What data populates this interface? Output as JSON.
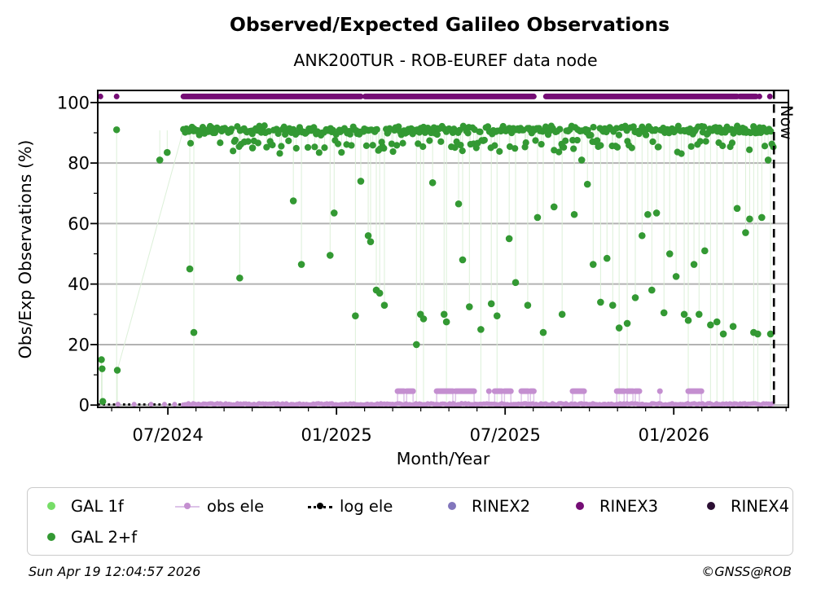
{
  "chart_data": {
    "type": "scatter",
    "title": "Observed/Expected Galileo Observations",
    "subtitle": "ANK200TUR - ROB-EUREF data node",
    "xlabel": "Month/Year",
    "ylabel": "Obs/Exp Observations (%)",
    "xlim": [
      2024.292,
      2026.34
    ],
    "ylim": [
      -0.75,
      104.0
    ],
    "grid": "horizontal-major",
    "legend_position": "below",
    "x_major_ticks": [
      {
        "x": 2024.5,
        "label": "07/2024"
      },
      {
        "x": 2025.0,
        "label": "01/2025"
      },
      {
        "x": 2025.5,
        "label": "07/2025"
      },
      {
        "x": 2026.0,
        "label": "01/2026"
      }
    ],
    "x_minor_step_years": 0.08333,
    "y_major_ticks": [
      0,
      20,
      40,
      60,
      80,
      100
    ],
    "y_minor_ticks": [
      10,
      30,
      50,
      70,
      90
    ],
    "gridline_ys": [
      0,
      20,
      40,
      60,
      80
    ],
    "reference_line_y": 100,
    "now": {
      "x": 2026.297,
      "label": "Now"
    },
    "series": [
      {
        "name": "GAL 1f",
        "color": "#76dd67",
        "marker": "dot",
        "points": []
      },
      {
        "name": "GAL 2+f",
        "color": "#339933",
        "marker": "dot",
        "sparse_points": [
          [
            2024.303,
            15
          ],
          [
            2024.305,
            12
          ],
          [
            2024.307,
            1.2
          ],
          [
            2024.348,
            91
          ],
          [
            2024.35,
            11.5
          ]
        ],
        "connector": [
          [
            2024.35,
            11.5
          ],
          [
            2024.546,
            91
          ]
        ],
        "dense_band": {
          "x_start": 2024.546,
          "x_end": 2026.296,
          "n": 418,
          "y_center": 90.8,
          "y_spread": 1.7,
          "low_band_center": 86.3,
          "low_band_spread": 1.3,
          "low_band_fraction": 0.18,
          "deep_center": 84.0,
          "deep_fraction": 0.03
        },
        "outliers": [
          [
            2024.476,
            81
          ],
          [
            2024.498,
            83.5
          ],
          [
            2024.565,
            45
          ],
          [
            2024.577,
            24
          ],
          [
            2024.713,
            42
          ],
          [
            2024.727,
            87
          ],
          [
            2024.751,
            85
          ],
          [
            2024.872,
            67.5
          ],
          [
            2024.896,
            46.5
          ],
          [
            2024.981,
            49.5
          ],
          [
            2024.993,
            63.5
          ],
          [
            2025.056,
            29.5
          ],
          [
            2025.072,
            74
          ],
          [
            2025.094,
            56
          ],
          [
            2025.101,
            54
          ],
          [
            2025.118,
            38
          ],
          [
            2025.128,
            37
          ],
          [
            2025.142,
            33
          ],
          [
            2025.237,
            20
          ],
          [
            2025.249,
            30
          ],
          [
            2025.258,
            28.5
          ],
          [
            2025.285,
            73.5
          ],
          [
            2025.319,
            30
          ],
          [
            2025.326,
            27.5
          ],
          [
            2025.362,
            66.5
          ],
          [
            2025.374,
            48
          ],
          [
            2025.394,
            32.5
          ],
          [
            2025.428,
            25
          ],
          [
            2025.459,
            33.5
          ],
          [
            2025.476,
            29.5
          ],
          [
            2025.512,
            55
          ],
          [
            2025.531,
            40.5
          ],
          [
            2025.567,
            33
          ],
          [
            2025.596,
            62
          ],
          [
            2025.613,
            24
          ],
          [
            2025.645,
            65.5
          ],
          [
            2025.669,
            30
          ],
          [
            2025.705,
            63
          ],
          [
            2025.727,
            81
          ],
          [
            2025.744,
            73
          ],
          [
            2025.761,
            46.5
          ],
          [
            2025.783,
            34
          ],
          [
            2025.802,
            48.5
          ],
          [
            2025.819,
            33
          ],
          [
            2025.838,
            25.5
          ],
          [
            2025.862,
            27
          ],
          [
            2025.886,
            35.5
          ],
          [
            2025.906,
            56
          ],
          [
            2025.923,
            63
          ],
          [
            2025.935,
            38
          ],
          [
            2025.949,
            63.5
          ],
          [
            2025.971,
            30.5
          ],
          [
            2025.988,
            50
          ],
          [
            2026.007,
            42.5
          ],
          [
            2026.031,
            30
          ],
          [
            2026.043,
            28
          ],
          [
            2026.06,
            46.5
          ],
          [
            2026.075,
            30
          ],
          [
            2026.092,
            51
          ],
          [
            2026.109,
            26.5
          ],
          [
            2026.128,
            27.5
          ],
          [
            2026.147,
            23.5
          ],
          [
            2026.176,
            26
          ],
          [
            2026.188,
            65
          ],
          [
            2026.213,
            57
          ],
          [
            2026.225,
            61.5
          ],
          [
            2026.237,
            24
          ],
          [
            2026.249,
            23.5
          ],
          [
            2026.261,
            62
          ],
          [
            2026.28,
            81
          ],
          [
            2026.287,
            23.5
          ]
        ]
      },
      {
        "name": "obs ele",
        "color": "#c48fd0",
        "line_color": "#ddc3e8",
        "marker": "line-dot",
        "baseline": {
          "x_start": 2024.546,
          "x_end": 2026.296,
          "step": 0.005,
          "y": 0.3
        },
        "baseline_sparse": [
          2024.352,
          2024.4,
          2024.45,
          2024.49,
          2024.52
        ],
        "spike_y": 4.6,
        "spikes": [
          [
            2025.181,
            2025.2
          ],
          [
            2025.208,
            2025.227
          ],
          [
            2025.297,
            2025.345
          ],
          [
            2025.353,
            2025.408
          ],
          [
            2025.469,
            2025.49
          ],
          [
            2025.498,
            2025.517
          ],
          [
            2025.548,
            2025.568
          ],
          [
            2025.575,
            2025.585
          ],
          [
            2025.7,
            2025.734
          ],
          [
            2025.831,
            2025.853
          ],
          [
            2025.862,
            2025.879
          ],
          [
            2025.886,
            2025.898
          ],
          [
            2026.043,
            2026.082
          ]
        ],
        "spike_singles": [
          2025.452,
          2025.959
        ]
      },
      {
        "name": "log ele",
        "color": "#000000",
        "marker": "dotted-line-dot",
        "line_y": 0.2,
        "x_start": 2024.292,
        "x_end": 2026.297,
        "style": "dotted"
      },
      {
        "name": "RINEX2",
        "color": "#8276bc",
        "marker": "dot",
        "points": []
      },
      {
        "name": "RINEX3",
        "color": "#750d75",
        "marker": "dot",
        "band_y": 102,
        "segments": [
          [
            2024.546,
            2025.072
          ],
          [
            2025.085,
            2025.585
          ],
          [
            2025.621,
            2026.188
          ],
          [
            2026.196,
            2026.244
          ]
        ],
        "dots": [
          2024.3,
          2024.348,
          2026.254,
          2026.285
        ]
      },
      {
        "name": "RINEX4",
        "color": "#2b0f33",
        "marker": "dot",
        "points": []
      }
    ]
  },
  "legend": {
    "items": [
      {
        "label": "GAL 1f",
        "color": "#76dd67",
        "marker": "dot",
        "row": 0,
        "col": 0
      },
      {
        "label": "obs ele",
        "color": "#c48fd0",
        "line_color": "#ddc3e8",
        "marker": "line-dot",
        "row": 0,
        "col": 1
      },
      {
        "label": "log ele",
        "color": "#000000",
        "marker": "dotted-line-dot",
        "row": 0,
        "col": 2
      },
      {
        "label": "RINEX2",
        "color": "#8276bc",
        "marker": "dot",
        "row": 0,
        "col": 3
      },
      {
        "label": "RINEX3",
        "color": "#750d75",
        "marker": "dot",
        "row": 0,
        "col": 4
      },
      {
        "label": "RINEX4",
        "color": "#2b0f33",
        "marker": "dot",
        "row": 0,
        "col": 5
      },
      {
        "label": "GAL 2+f",
        "color": "#339933",
        "marker": "dot",
        "row": 1,
        "col": 0
      }
    ]
  },
  "footer": {
    "timestamp": "Sun Apr 19 12:04:57 2026",
    "credit": "©GNSS@ROB"
  },
  "colors": {
    "background": "#ffffff",
    "frame": "#000000",
    "grid": "#b2b2b2",
    "drop_line": "#dcf0d8",
    "now_line": "#000000"
  }
}
